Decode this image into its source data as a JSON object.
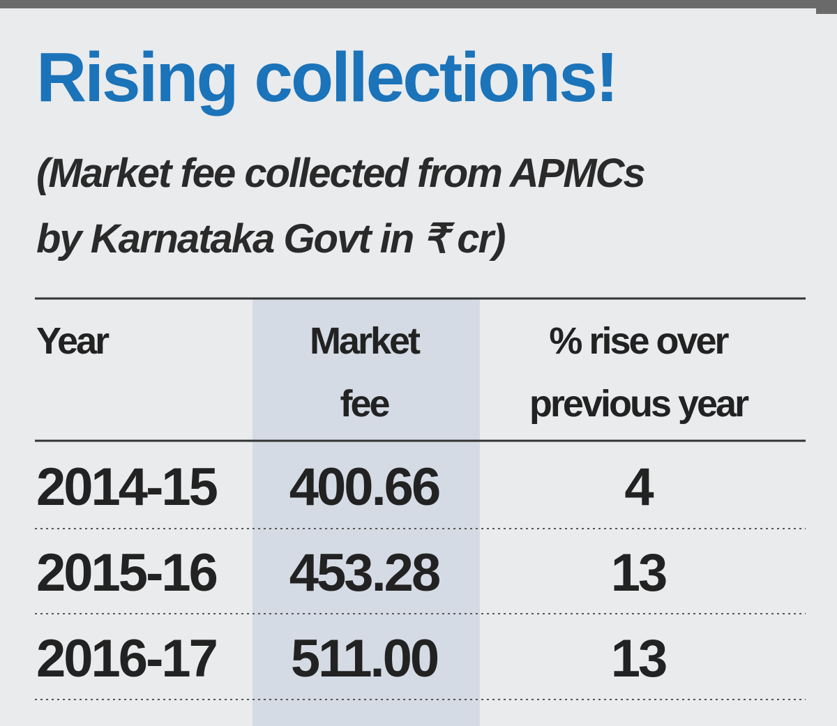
{
  "header": {
    "title": "Rising collections!",
    "subtitle_lines": [
      "(Market fee collected from APMCs",
      "by Karnataka Govt in ₹ cr)"
    ]
  },
  "table": {
    "columns": [
      [
        "Year"
      ],
      [
        "Market",
        "fee"
      ],
      [
        "% rise over",
        "previous year"
      ]
    ],
    "rows": [
      [
        "2014-15",
        "400.66",
        "4"
      ],
      [
        "2015-16",
        "453.28",
        "13"
      ],
      [
        "2016-17",
        "511.00",
        "13"
      ]
    ]
  }
}
